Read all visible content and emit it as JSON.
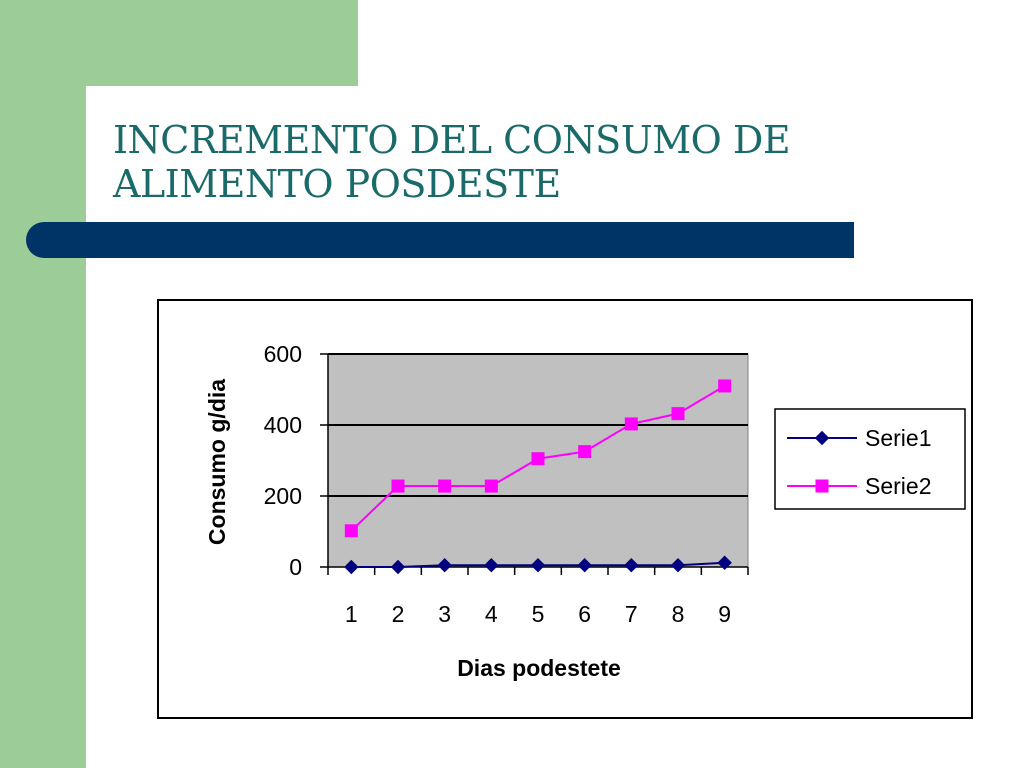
{
  "slide": {
    "title_line1": "INCREMENTO DEL CONSUMO DE",
    "title_line2": "ALIMENTO POSDESTE",
    "colors": {
      "side_band": "#9ccc98",
      "title_bar": "#003366",
      "title_text": "#1a6a6a"
    }
  },
  "chart_data": {
    "type": "line",
    "x": [
      1,
      2,
      3,
      4,
      5,
      6,
      7,
      8,
      9
    ],
    "series": [
      {
        "name": "Serie1",
        "values": [
          0,
          0,
          5,
          5,
          5,
          5,
          5,
          5,
          12
        ],
        "color": "#000080",
        "marker": "diamond"
      },
      {
        "name": "Serie2",
        "values": [
          102,
          228,
          228,
          228,
          305,
          325,
          403,
          432,
          510
        ],
        "color": "#ff00ff",
        "marker": "square"
      }
    ],
    "xlabel": "Dias podestete",
    "ylabel": "Consumo g/dia",
    "ylim": [
      0,
      600
    ],
    "yticks": [
      0,
      200,
      400,
      600
    ],
    "grid": true,
    "plot_background": "#c0c0c0",
    "legend_position": "right"
  }
}
